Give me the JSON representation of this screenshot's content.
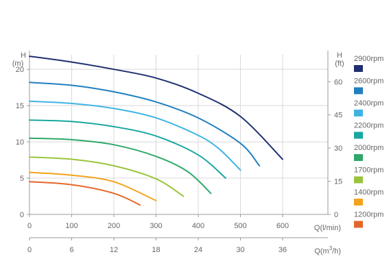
{
  "chart_data": {
    "type": "line",
    "y_left_title": "H",
    "y_left_unit": "(m)",
    "y_right_title": "H",
    "y_right_unit": "(ft)",
    "x_primary_label": "Q(l/min)",
    "x_secondary_label_base": "Q(m",
    "x_secondary_label_sup": "3",
    "x_secondary_label_tail": "/h)",
    "ylim": [
      0,
      22
    ],
    "xlim": [
      0,
      640
    ],
    "x2lim": [
      0,
      38.4
    ],
    "y_left_ticks": [
      0,
      5,
      10,
      15,
      20
    ],
    "y_right_ticks": [
      0,
      15,
      30,
      45,
      60
    ],
    "x_primary_ticks": [
      0,
      100,
      200,
      300,
      400,
      500,
      600
    ],
    "x_secondary_ticks": [
      0,
      6,
      12,
      18,
      24,
      30,
      36
    ],
    "grid": true,
    "legend_position": "right",
    "series": [
      {
        "name": "2900rpm",
        "color": "#1f2f6f",
        "x": [
          0,
          100,
          200,
          300,
          400,
          500,
          600
        ],
        "y": [
          21.8,
          21.0,
          20.0,
          18.8,
          16.7,
          13.5,
          7.6
        ]
      },
      {
        "name": "2600rpm",
        "color": "#1f7fbf",
        "x": [
          0,
          100,
          200,
          300,
          400,
          500,
          545
        ],
        "y": [
          18.2,
          17.8,
          16.9,
          15.5,
          13.3,
          9.8,
          6.7
        ]
      },
      {
        "name": "2400rpm",
        "color": "#3fb4e4",
        "x": [
          0,
          100,
          200,
          300,
          400,
          450,
          500
        ],
        "y": [
          15.6,
          15.3,
          14.6,
          13.3,
          10.9,
          9.0,
          6.1
        ]
      },
      {
        "name": "2200rpm",
        "color": "#17a7a0",
        "x": [
          0,
          100,
          200,
          300,
          400,
          465
        ],
        "y": [
          13.0,
          12.8,
          12.1,
          10.8,
          8.2,
          5.0
        ]
      },
      {
        "name": "2000rpm",
        "color": "#2fa86a",
        "x": [
          0,
          100,
          200,
          300,
          375,
          430
        ],
        "y": [
          10.5,
          10.3,
          9.6,
          8.0,
          5.9,
          2.9
        ]
      },
      {
        "name": "1700rpm",
        "color": "#9ac43c",
        "x": [
          0,
          100,
          200,
          300,
          365
        ],
        "y": [
          7.9,
          7.6,
          6.7,
          4.9,
          2.5
        ]
      },
      {
        "name": "1400rpm",
        "color": "#f5a21d",
        "x": [
          0,
          100,
          200,
          300
        ],
        "y": [
          5.8,
          5.4,
          4.5,
          1.9
        ]
      },
      {
        "name": "1200rpm",
        "color": "#e5662a",
        "x": [
          0,
          100,
          200,
          262
        ],
        "y": [
          4.5,
          4.1,
          2.9,
          1.3
        ]
      }
    ]
  }
}
